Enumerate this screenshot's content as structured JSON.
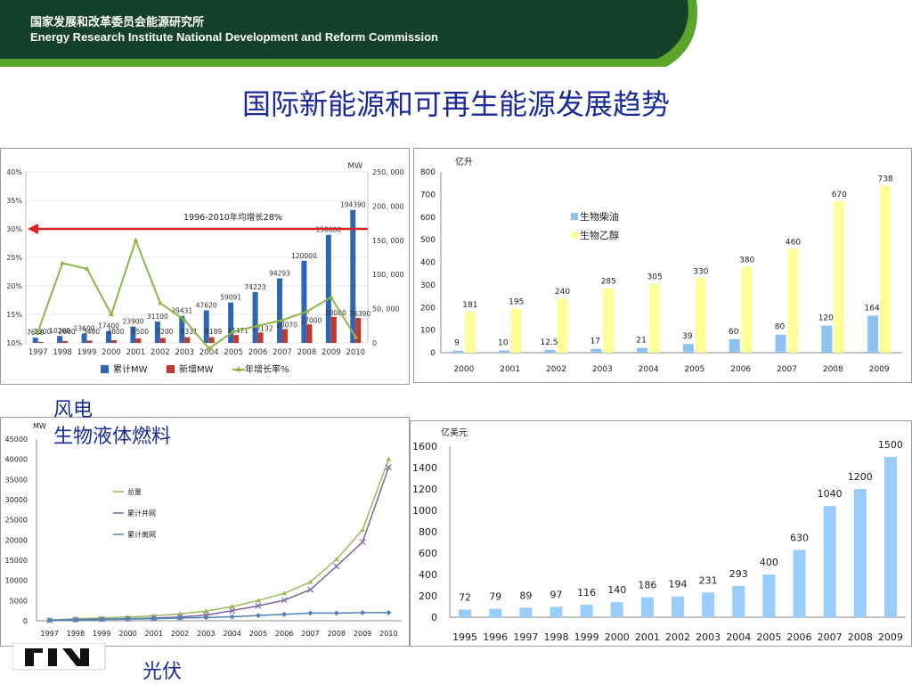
{
  "header": {
    "org_cn": "国家发展和改革委员会能源研究所",
    "org_en": "Energy Research Institute National Development and Reform Commission",
    "colors": {
      "dark": "#14402c",
      "band": "#5aa52a"
    }
  },
  "title": "国际新能源和可再生能源发展趋势",
  "captions": {
    "wind": "风电",
    "biofuel": "生物液体燃料",
    "pv": "光伏"
  },
  "chart_data": [
    {
      "id": "wind",
      "type": "bar",
      "title": "",
      "categories": [
        "1997",
        "1998",
        "1999",
        "2000",
        "2001",
        "2002",
        "2003",
        "2004",
        "2005",
        "2006",
        "2007",
        "2008",
        "2009",
        "2010"
      ],
      "series": [
        {
          "name": "累计MW",
          "color": "#2e66b4",
          "values": [
            7600,
            10200,
            13600,
            17400,
            23900,
            31100,
            39431,
            47620,
            59091,
            74223,
            94293,
            120000,
            158000,
            194390
          ]
        },
        {
          "name": "新增MW",
          "color": "#c0392b",
          "values": [
            1500,
            2600,
            3400,
            3800,
            6500,
            7200,
            8331,
            8189,
            11471,
            15132,
            20070,
            27000,
            38000,
            36390
          ]
        },
        {
          "name": "年增长率%",
          "type": "line",
          "color": "#8fb54a",
          "values": [
            12,
            24,
            23,
            15,
            28,
            17,
            14,
            9,
            12,
            13,
            14,
            15.5,
            18,
            11
          ]
        }
      ],
      "y_right_unit": "MW",
      "y_right_ticks": [
        "0",
        "50, 000",
        "100, 000",
        "150, 000",
        "200, 000",
        "250, 000"
      ],
      "y_right_range": [
        0,
        250000
      ],
      "y_left_ticks": [
        "10%",
        "15%",
        "20%",
        "25%",
        "30%",
        "35%",
        "40%"
      ],
      "y_left_range": [
        10,
        40
      ],
      "annotation": "1996-2010年均增长28%",
      "arrow_level_pct": 30,
      "legend": "bottom"
    },
    {
      "id": "biofuel",
      "type": "bar",
      "ylabel": "亿升",
      "categories": [
        "2000",
        "2001",
        "2002",
        "2003",
        "2004",
        "2005",
        "2006",
        "2007",
        "2008",
        "2009"
      ],
      "series": [
        {
          "name": "生物柴油",
          "color": "#8ec3f0",
          "values": [
            9,
            10,
            12.5,
            17,
            21,
            39,
            60,
            80,
            120,
            164
          ],
          "labels": [
            "9",
            "10",
            "12.5",
            "17",
            "21",
            "39",
            "60",
            "80",
            "120",
            "164"
          ]
        },
        {
          "name": "生物乙醇",
          "color": "#ffff99",
          "values": [
            181,
            195,
            240,
            285,
            305,
            330,
            380,
            460,
            670,
            738
          ],
          "labels": [
            "181",
            "195",
            "240",
            "285",
            "305",
            "330",
            "380",
            "460",
            "670",
            "738"
          ]
        }
      ],
      "ylim": [
        0,
        800
      ],
      "y_ticks": [
        "0",
        "100",
        "200",
        "300",
        "400",
        "500",
        "600",
        "700",
        "800"
      ],
      "legend": "top-left"
    },
    {
      "id": "pv",
      "type": "line",
      "ylabel": "MW",
      "x": [
        "1997",
        "1998",
        "1999",
        "2000",
        "2001",
        "2002",
        "2003",
        "2004",
        "2005",
        "2006",
        "2007",
        "2008",
        "2009",
        "2010"
      ],
      "series": [
        {
          "name": "总量",
          "color": "#9bbb59",
          "marker": "triangle",
          "values": [
            200,
            500,
            700,
            900,
            1200,
            1700,
            2400,
            3500,
            5000,
            6800,
            9600,
            15200,
            22500,
            40000
          ]
        },
        {
          "name": "累计并网",
          "color": "#8064a2",
          "marker": "x",
          "values": [
            100,
            300,
            400,
            500,
            700,
            900,
            1400,
            2500,
            3700,
            5100,
            7700,
            13500,
            19500,
            38000
          ]
        },
        {
          "name": "累计离网",
          "color": "#4f81bd",
          "marker": "diamond",
          "values": [
            100,
            200,
            300,
            400,
            500,
            700,
            800,
            1000,
            1300,
            1600,
            1900,
            1900,
            2000,
            2000
          ]
        }
      ],
      "ylim": [
        0,
        45000
      ],
      "y_ticks": [
        "0",
        "5000",
        "10000",
        "15000",
        "20000",
        "25000",
        "30000",
        "35000",
        "40000",
        "45000"
      ],
      "legend": "left-middle"
    },
    {
      "id": "solar_heat",
      "type": "bar",
      "ylabel": "亿美元",
      "categories": [
        "1995",
        "1996",
        "1997",
        "1998",
        "1999",
        "2000",
        "2001",
        "2002",
        "2003",
        "2004",
        "2005",
        "2006",
        "2007",
        "2008",
        "2009"
      ],
      "series": [
        {
          "color": "#99ccff",
          "values": [
            72,
            79,
            89,
            97,
            116,
            140,
            186,
            194,
            231,
            293,
            400,
            630,
            1040,
            1200,
            1500
          ]
        }
      ],
      "ylim": [
        0,
        1600
      ],
      "y_ticks": [
        "0",
        "200",
        "400",
        "600",
        "800",
        "1000",
        "1200",
        "1400",
        "1600"
      ]
    }
  ]
}
